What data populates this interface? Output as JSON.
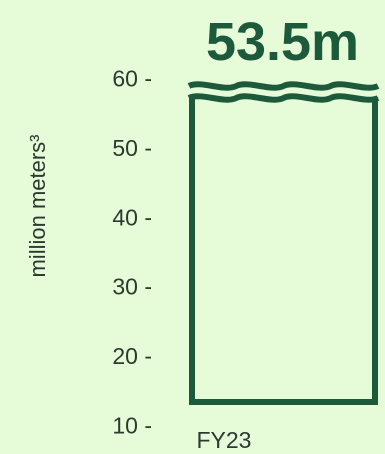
{
  "chart_data": {
    "type": "bar",
    "title": "53.5m",
    "xlabel": "",
    "ylabel": "million meters³",
    "categories": [
      "FY23"
    ],
    "values": [
      53.5
    ],
    "ylim": [
      5,
      65
    ],
    "yticks": [
      {
        "value": 10,
        "label": "10 -"
      },
      {
        "value": 20,
        "label": "20 -"
      },
      {
        "value": 30,
        "label": "30 -"
      },
      {
        "value": 40,
        "label": "40 -"
      },
      {
        "value": 50,
        "label": "50 -"
      },
      {
        "value": 60,
        "label": "60 -"
      }
    ],
    "grid": false,
    "legend": "none",
    "axis_break": true,
    "colors": {
      "background": "#e6fbd8",
      "bar_stroke": "#1d5a3c",
      "text": "#2c3a30",
      "value_label": "#1d5a3c"
    }
  }
}
